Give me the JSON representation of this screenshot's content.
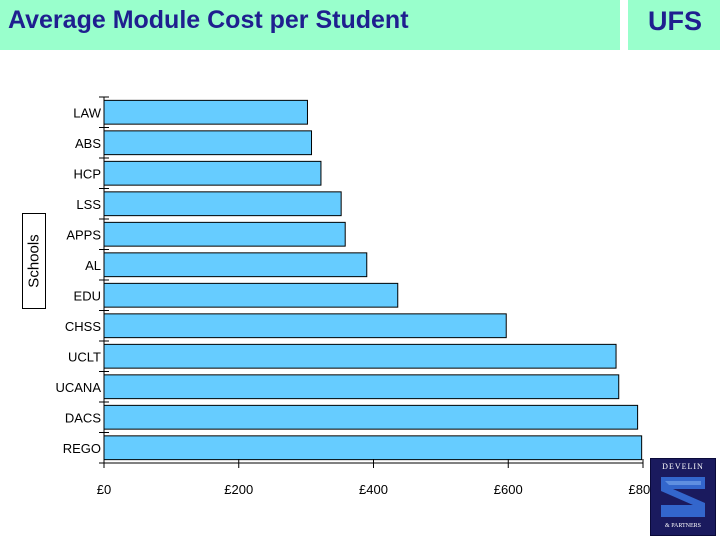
{
  "header": {
    "title": "Average Module Cost per Student",
    "corner_label": "UFS"
  },
  "logo": {
    "line1": "DEVELIN",
    "line2": "& PARTNERS"
  },
  "chart_data": {
    "type": "bar",
    "orientation": "horizontal",
    "title": "Average Module Cost per Student",
    "ylabel": "Schools",
    "xlabel": "",
    "categories": [
      "LAW",
      "ABS",
      "HCP",
      "LSS",
      "APPS",
      "AL",
      "EDU",
      "CHSS",
      "UCLT",
      "UCANA",
      "DACS",
      "REGO"
    ],
    "values": [
      302,
      308,
      322,
      352,
      358,
      390,
      436,
      597,
      760,
      764,
      792,
      798
    ],
    "xlim": [
      0,
      800
    ],
    "xticks": [
      0,
      200,
      400,
      600,
      800
    ],
    "xtick_labels": [
      "£0",
      "£200",
      "£400",
      "£600",
      "£800"
    ],
    "bar_color": "#66ccff",
    "grid": false,
    "legend": "none"
  }
}
